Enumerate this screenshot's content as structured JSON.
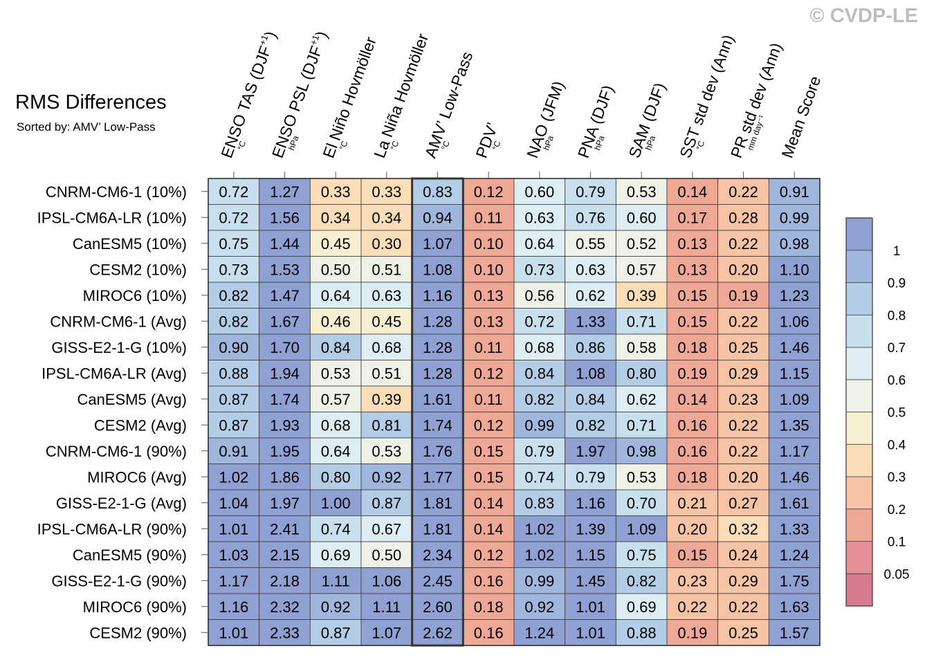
{
  "copyright": "© CVDP-LE",
  "chart_data": {
    "type": "heatmap",
    "title": "RMS Differences",
    "subtitle": "Sorted by: AMV’ Low-Pass",
    "columns": [
      {
        "label": "ENSO TAS (DJF",
        "sup": "+1",
        "close": ")",
        "unit": "°C"
      },
      {
        "label": "ENSO PSL (DJF",
        "sup": "+1",
        "close": ")",
        "unit": "hPa"
      },
      {
        "label": "El Niño Hovmöller",
        "sup": "",
        "close": "",
        "unit": "°C"
      },
      {
        "label": "La Niña Hovmöller",
        "sup": "",
        "close": "",
        "unit": "°C"
      },
      {
        "label": "AMV’ Low-Pass",
        "sup": "",
        "close": "",
        "unit": "°C"
      },
      {
        "label": "PDV’",
        "sup": "",
        "close": "",
        "unit": "°C"
      },
      {
        "label": "NAO (JFM)",
        "sup": "",
        "close": "",
        "unit": "hPa"
      },
      {
        "label": "PNA (DJF)",
        "sup": "",
        "close": "",
        "unit": "hPa"
      },
      {
        "label": "SAM (DJF)",
        "sup": "",
        "close": "",
        "unit": "hPa"
      },
      {
        "label": "SST std dev (Ann)",
        "sup": "",
        "close": "",
        "unit": "°C"
      },
      {
        "label": "PR std dev (Ann)",
        "sup": "",
        "close": "",
        "unit": "mm day⁻¹"
      },
      {
        "label": "Mean Score",
        "sup": "",
        "close": "",
        "unit": ""
      }
    ],
    "highlight_column": 4,
    "rows": [
      "CNRM-CM6-1 (10%)",
      "IPSL-CM6A-LR (10%)",
      "CanESM5 (10%)",
      "CESM2 (10%)",
      "MIROC6 (10%)",
      "CNRM-CM6-1 (Avg)",
      "GISS-E2-1-G (10%)",
      "IPSL-CM6A-LR (Avg)",
      "CanESM5 (Avg)",
      "CESM2 (Avg)",
      "CNRM-CM6-1 (90%)",
      "MIROC6 (Avg)",
      "GISS-E2-1-G (Avg)",
      "IPSL-CM6A-LR (90%)",
      "CanESM5 (90%)",
      "GISS-E2-1-G (90%)",
      "MIROC6 (90%)",
      "CESM2 (90%)"
    ],
    "values": [
      [
        "0.72",
        "1.27",
        "0.33",
        "0.33",
        "0.83",
        "0.12",
        "0.60",
        "0.79",
        "0.53",
        "0.14",
        "0.22",
        "0.91"
      ],
      [
        "0.72",
        "1.56",
        "0.34",
        "0.34",
        "0.94",
        "0.11",
        "0.63",
        "0.76",
        "0.60",
        "0.17",
        "0.28",
        "0.99"
      ],
      [
        "0.75",
        "1.44",
        "0.45",
        "0.30",
        "1.07",
        "0.10",
        "0.64",
        "0.55",
        "0.52",
        "0.13",
        "0.22",
        "0.98"
      ],
      [
        "0.73",
        "1.53",
        "0.50",
        "0.51",
        "1.08",
        "0.10",
        "0.73",
        "0.63",
        "0.57",
        "0.13",
        "0.20",
        "1.10"
      ],
      [
        "0.82",
        "1.47",
        "0.64",
        "0.63",
        "1.16",
        "0.13",
        "0.56",
        "0.62",
        "0.39",
        "0.15",
        "0.19",
        "1.23"
      ],
      [
        "0.82",
        "1.67",
        "0.46",
        "0.45",
        "1.28",
        "0.13",
        "0.72",
        "1.33",
        "0.71",
        "0.15",
        "0.22",
        "1.06"
      ],
      [
        "0.90",
        "1.70",
        "0.84",
        "0.68",
        "1.28",
        "0.11",
        "0.68",
        "0.86",
        "0.58",
        "0.18",
        "0.25",
        "1.46"
      ],
      [
        "0.88",
        "1.94",
        "0.53",
        "0.51",
        "1.28",
        "0.12",
        "0.84",
        "1.08",
        "0.80",
        "0.19",
        "0.29",
        "1.15"
      ],
      [
        "0.87",
        "1.74",
        "0.57",
        "0.39",
        "1.61",
        "0.11",
        "0.82",
        "0.84",
        "0.62",
        "0.14",
        "0.23",
        "1.09"
      ],
      [
        "0.87",
        "1.93",
        "0.68",
        "0.81",
        "1.74",
        "0.12",
        "0.99",
        "0.82",
        "0.71",
        "0.16",
        "0.22",
        "1.35"
      ],
      [
        "0.91",
        "1.95",
        "0.64",
        "0.53",
        "1.76",
        "0.15",
        "0.79",
        "1.97",
        "0.98",
        "0.16",
        "0.22",
        "1.17"
      ],
      [
        "1.02",
        "1.86",
        "0.80",
        "0.92",
        "1.77",
        "0.15",
        "0.74",
        "0.79",
        "0.53",
        "0.18",
        "0.20",
        "1.46"
      ],
      [
        "1.04",
        "1.97",
        "1.00",
        "0.87",
        "1.81",
        "0.14",
        "0.83",
        "1.16",
        "0.70",
        "0.21",
        "0.27",
        "1.61"
      ],
      [
        "1.01",
        "2.41",
        "0.74",
        "0.67",
        "1.81",
        "0.14",
        "1.02",
        "1.39",
        "1.09",
        "0.20",
        "0.32",
        "1.33"
      ],
      [
        "1.03",
        "2.15",
        "0.69",
        "0.50",
        "2.34",
        "0.12",
        "1.02",
        "1.15",
        "0.75",
        "0.15",
        "0.24",
        "1.24"
      ],
      [
        "1.17",
        "2.18",
        "1.11",
        "1.06",
        "2.45",
        "0.16",
        "0.99",
        "1.45",
        "0.82",
        "0.23",
        "0.29",
        "1.75"
      ],
      [
        "1.16",
        "2.32",
        "0.92",
        "1.11",
        "2.60",
        "0.18",
        "0.92",
        "1.01",
        "0.69",
        "0.22",
        "0.22",
        "1.63"
      ],
      [
        "1.01",
        "2.33",
        "0.87",
        "1.07",
        "2.62",
        "0.16",
        "1.24",
        "1.01",
        "0.88",
        "0.19",
        "0.25",
        "1.57"
      ]
    ],
    "colorbar": {
      "levels": [
        "0.05",
        "0.1",
        "0.2",
        "0.3",
        "0.4",
        "0.5",
        "0.6",
        "0.7",
        "0.8",
        "0.9",
        "1"
      ],
      "colors": [
        "#d47a8c",
        "#e38f95",
        "#f0a896",
        "#f6c3a4",
        "#fbddb8",
        "#f8eed1",
        "#eef2e6",
        "#dcedf4",
        "#c8e0ee",
        "#b4cde6",
        "#a0b6dc",
        "#8fa1d2"
      ]
    }
  }
}
